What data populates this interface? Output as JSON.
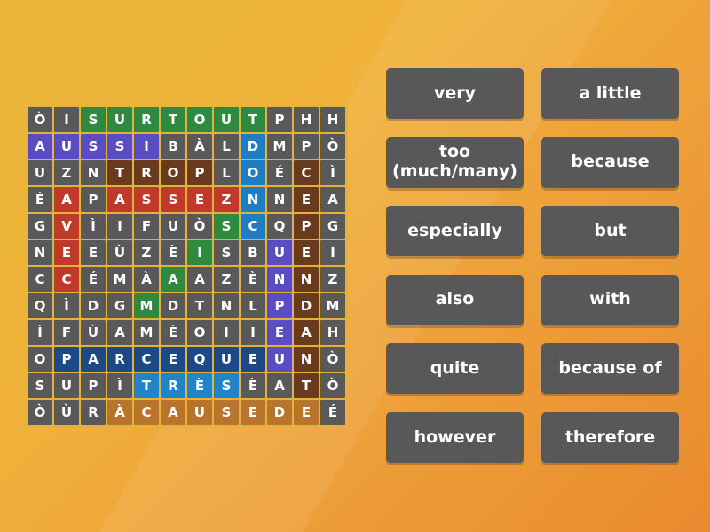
{
  "wordsearch": {
    "rows": [
      "ÒISURTOUTPHH",
      "AUSSIBÀLDMPÒ",
      "UZNTROPLOÉCÌ",
      "ÉAPASSEZNNEA",
      "GVÌIFUÒSCQPG",
      "NEEÙZÈISBUEI",
      "CCÉMÀAAZÈNNZ",
      "QÌDGMDTNLPDM",
      "ÌFÙAMÈOIIEAH",
      "OPARCEQUEUNÒ",
      "SUPÌTRÈSÈATÒ",
      "ÒÙRÀCAUSEDEÉ"
    ],
    "highlights": [
      "..GGGGGGG...",
      "PPPPP...L...",
      "...BBBB.L.B.",
      ".R.RRRRRL.B.",
      ".R.....GL.B.",
      ".R....G..PB.",
      ".R...G...PB.",
      "....G....PB.",
      ".........PB.",
      ".NNNNNNNNPB.",
      "....TTTT..B.",
      "...OOOOOOOO."
    ],
    "colors": {
      ".": "#595959",
      "G": "#2f8a3f",
      "P": "#5a4cc2",
      "L": "#1f7dc2",
      "B": "#6a3a1c",
      "R": "#c03a29",
      "N": "#1d4a86",
      "T": "#2184c8",
      "O": "#b8742b"
    }
  },
  "clues": [
    {
      "label": "very"
    },
    {
      "label": "a little"
    },
    {
      "label": "too\n(much/many)"
    },
    {
      "label": "because"
    },
    {
      "label": "especially"
    },
    {
      "label": "but"
    },
    {
      "label": "also"
    },
    {
      "label": "with"
    },
    {
      "label": "quite"
    },
    {
      "label": "because of"
    },
    {
      "label": "however"
    },
    {
      "label": "therefore"
    }
  ]
}
